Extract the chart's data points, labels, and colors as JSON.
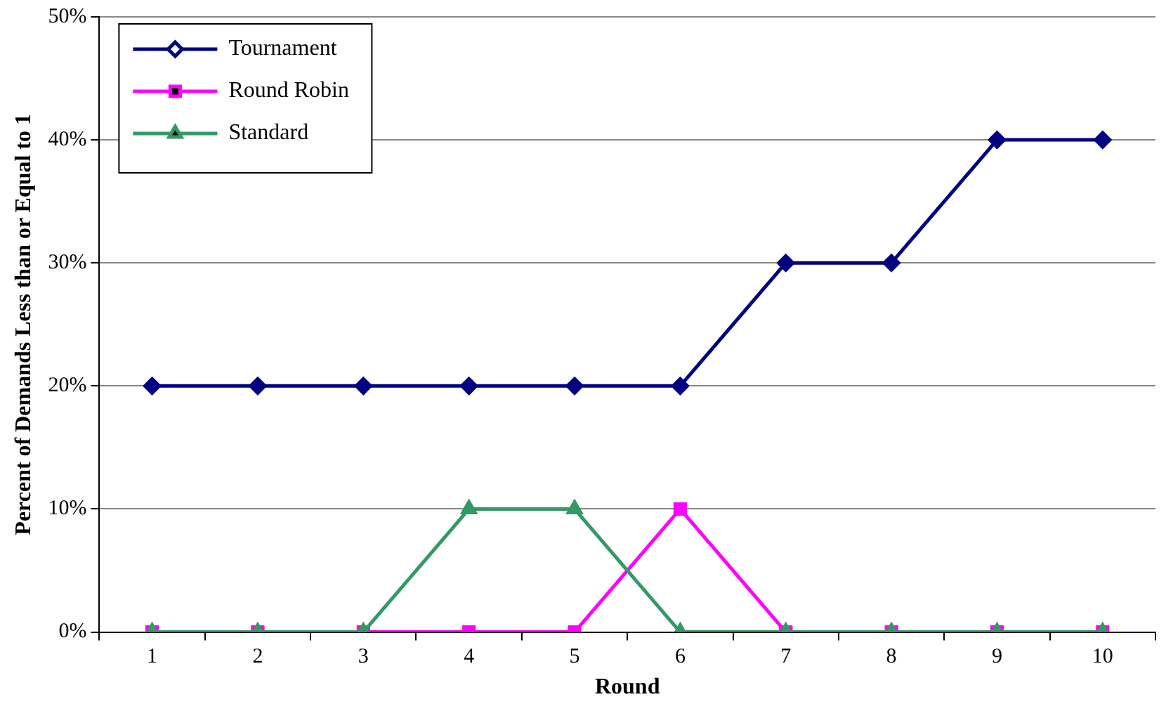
{
  "chart_data": {
    "type": "line",
    "xlabel": "Round",
    "ylabel": "Percent of Demands Less than or Equal to 1",
    "categories": [
      "1",
      "2",
      "3",
      "4",
      "5",
      "6",
      "7",
      "8",
      "9",
      "10"
    ],
    "series": [
      {
        "name": "Tournament",
        "color": "#000080",
        "marker": "diamond",
        "values": [
          20,
          20,
          20,
          20,
          20,
          20,
          30,
          30,
          40,
          40
        ]
      },
      {
        "name": "Round Robin",
        "color": "#ff00ff",
        "marker": "square",
        "values": [
          0,
          0,
          0,
          0,
          0,
          10,
          0,
          0,
          0,
          0
        ]
      },
      {
        "name": "Standard",
        "color": "#339966",
        "marker": "triangle",
        "values": [
          0,
          0,
          0,
          10,
          10,
          0,
          0,
          0,
          0,
          0
        ]
      }
    ],
    "ylim": [
      0,
      50
    ],
    "yticks": [
      {
        "value": 0,
        "label": "0%"
      },
      {
        "value": 10,
        "label": "10%"
      },
      {
        "value": 20,
        "label": "20%"
      },
      {
        "value": 30,
        "label": "30%"
      },
      {
        "value": 40,
        "label": "40%"
      },
      {
        "value": 50,
        "label": "50%"
      }
    ],
    "grid": "y",
    "legend": "top left",
    "line_style": "solid"
  }
}
